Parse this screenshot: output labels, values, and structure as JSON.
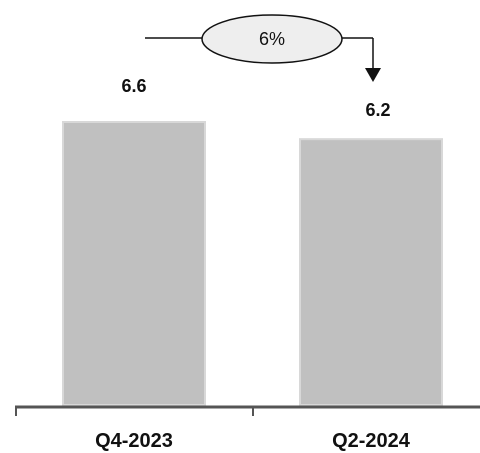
{
  "chart_data": {
    "type": "bar",
    "categories": [
      "Q4-2023",
      "Q2-2024"
    ],
    "values": [
      6.6,
      6.2
    ],
    "value_labels": [
      "6.6",
      "6.2"
    ],
    "ylim": [
      0,
      6.6
    ],
    "grid": false,
    "annotation": {
      "text": "6%",
      "from_category": "Q4-2023",
      "to_category": "Q2-2024",
      "direction": "down"
    }
  },
  "colors": {
    "bar": "#c0c0c0",
    "bar_edge": "#d8d8d8",
    "axis": "#555555",
    "text": "#111111"
  }
}
